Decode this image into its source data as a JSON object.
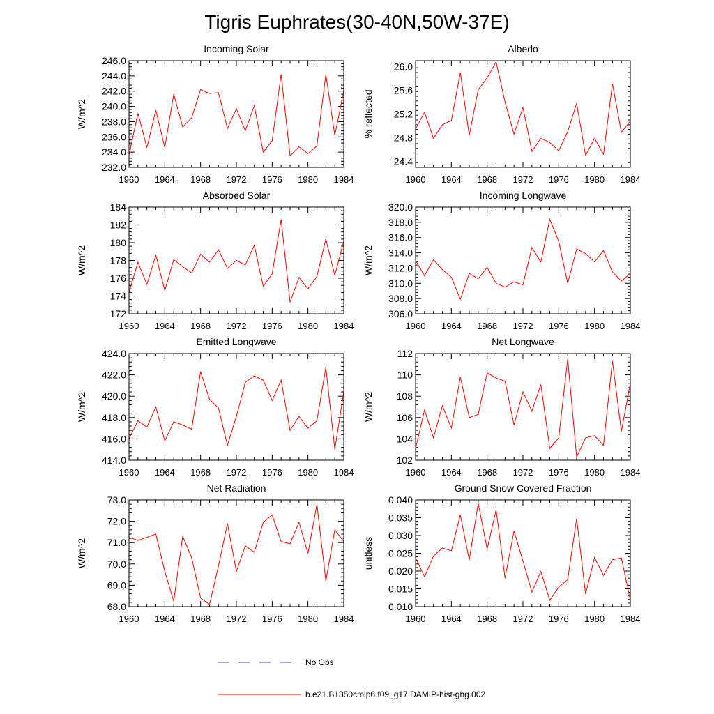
{
  "title": "Tigris Euphrates(30-40N,50W-37E)",
  "legend": [
    {
      "label": "No Obs",
      "style": "dashed",
      "color": "#4a55c8"
    },
    {
      "label": "b.e21.B1850cmip6.f09_g17.DAMIP-hist-ghg.002",
      "style": "solid",
      "color": "#ff0000"
    }
  ],
  "chart_data": [
    {
      "type": "line",
      "title": "Incoming Solar",
      "ylabel": "W/m^2",
      "xlim": [
        1960,
        1984
      ],
      "ylim": [
        232,
        246
      ],
      "xticks": [
        1960,
        1964,
        1968,
        1972,
        1976,
        1980,
        1984
      ],
      "yticks": [
        "232.0",
        "234.0",
        "236.0",
        "238.0",
        "240.0",
        "242.0",
        "244.0",
        "246.0"
      ],
      "series": [
        {
          "color": "#ff0000",
          "x": [
            1960,
            1961,
            1962,
            1963,
            1964,
            1965,
            1966,
            1967,
            1968,
            1969,
            1970,
            1971,
            1972,
            1973,
            1974,
            1975,
            1976,
            1977,
            1978,
            1979,
            1980,
            1981,
            1982,
            1983,
            1984
          ],
          "y": [
            233.6,
            239.1,
            234.6,
            239.5,
            234.6,
            241.6,
            237.3,
            238.5,
            242.2,
            241.7,
            241.8,
            237.1,
            239.7,
            236.8,
            240.1,
            234.0,
            235.5,
            244.2,
            233.5,
            234.7,
            233.8,
            234.8,
            244.2,
            236.2,
            242.0
          ]
        }
      ]
    },
    {
      "type": "line",
      "title": "Albedo",
      "ylabel": "% reflected",
      "xlim": [
        1960,
        1984
      ],
      "ylim": [
        24.3,
        26.1
      ],
      "xticks": [
        1960,
        1964,
        1968,
        1972,
        1976,
        1980,
        1984
      ],
      "yticks": [
        "24.4",
        "24.8",
        "25.2",
        "25.6",
        "26.0"
      ],
      "series": [
        {
          "color": "#ff0000",
          "x": [
            1960,
            1961,
            1962,
            1963,
            1964,
            1965,
            1966,
            1967,
            1968,
            1969,
            1970,
            1971,
            1972,
            1973,
            1974,
            1975,
            1976,
            1977,
            1978,
            1979,
            1980,
            1981,
            1982,
            1983,
            1984
          ],
          "y": [
            24.95,
            25.23,
            24.79,
            25.02,
            25.09,
            25.9,
            24.84,
            25.61,
            25.81,
            26.08,
            25.4,
            24.86,
            25.31,
            24.57,
            24.79,
            24.72,
            24.58,
            24.9,
            25.38,
            24.5,
            24.79,
            24.52,
            25.71,
            24.89,
            25.08
          ]
        }
      ]
    },
    {
      "type": "line",
      "title": "Absorbed Solar",
      "ylabel": "W/m^2",
      "xlim": [
        1960,
        1984
      ],
      "ylim": [
        172,
        184
      ],
      "xticks": [
        1960,
        1964,
        1968,
        1972,
        1976,
        1980,
        1984
      ],
      "yticks": [
        "172",
        "174",
        "176",
        "178",
        "180",
        "182",
        "184"
      ],
      "series": [
        {
          "color": "#ff0000",
          "x": [
            1960,
            1961,
            1962,
            1963,
            1964,
            1965,
            1966,
            1967,
            1968,
            1969,
            1970,
            1971,
            1972,
            1973,
            1974,
            1975,
            1976,
            1977,
            1978,
            1979,
            1980,
            1981,
            1982,
            1983,
            1984
          ],
          "y": [
            174.4,
            177.8,
            175.3,
            178.6,
            174.6,
            178.1,
            177.3,
            176.6,
            178.7,
            177.8,
            179.2,
            177.1,
            178.0,
            177.5,
            179.7,
            175.1,
            176.5,
            182.6,
            173.3,
            176.1,
            174.8,
            176.2,
            180.4,
            176.3,
            180.2
          ]
        }
      ]
    },
    {
      "type": "line",
      "title": "Incoming Longwave",
      "ylabel": "W/m^2",
      "xlim": [
        1960,
        1984
      ],
      "ylim": [
        306,
        320
      ],
      "xticks": [
        1960,
        1964,
        1968,
        1972,
        1976,
        1980,
        1984
      ],
      "yticks": [
        "306.0",
        "308.0",
        "310.0",
        "312.0",
        "314.0",
        "316.0",
        "318.0",
        "320.0"
      ],
      "series": [
        {
          "color": "#ff0000",
          "x": [
            1960,
            1961,
            1962,
            1963,
            1964,
            1965,
            1966,
            1967,
            1968,
            1969,
            1970,
            1971,
            1972,
            1973,
            1974,
            1975,
            1976,
            1977,
            1978,
            1979,
            1980,
            1981,
            1982,
            1983,
            1984
          ],
          "y": [
            313.0,
            311.0,
            313.1,
            311.8,
            310.8,
            307.9,
            311.3,
            310.6,
            312.1,
            310.0,
            309.5,
            310.2,
            309.8,
            314.7,
            312.8,
            318.4,
            315.5,
            310.0,
            314.5,
            313.9,
            312.8,
            314.3,
            311.5,
            310.3,
            311.3
          ]
        }
      ]
    },
    {
      "type": "line",
      "title": "Emitted Longwave",
      "ylabel": "W/m^2",
      "xlim": [
        1960,
        1984
      ],
      "ylim": [
        414,
        424
      ],
      "xticks": [
        1960,
        1964,
        1968,
        1972,
        1976,
        1980,
        1984
      ],
      "yticks": [
        "414.0",
        "416.0",
        "418.0",
        "420.0",
        "422.0",
        "424.0"
      ],
      "series": [
        {
          "color": "#ff0000",
          "x": [
            1960,
            1961,
            1962,
            1963,
            1964,
            1965,
            1966,
            1967,
            1968,
            1969,
            1970,
            1971,
            1972,
            1973,
            1974,
            1975,
            1976,
            1977,
            1978,
            1979,
            1980,
            1981,
            1982,
            1983,
            1984
          ],
          "y": [
            416.0,
            417.7,
            417.1,
            419.0,
            415.8,
            417.6,
            417.3,
            416.9,
            422.3,
            419.7,
            418.9,
            415.4,
            418.1,
            421.3,
            421.9,
            421.5,
            419.6,
            421.5,
            416.8,
            418.1,
            417.0,
            417.7,
            422.7,
            415.0,
            420.4
          ]
        }
      ]
    },
    {
      "type": "line",
      "title": "Net Longwave",
      "ylabel": "W/m^2",
      "xlim": [
        1960,
        1984
      ],
      "ylim": [
        102,
        112
      ],
      "xticks": [
        1960,
        1964,
        1968,
        1972,
        1976,
        1980,
        1984
      ],
      "yticks": [
        "102",
        "104",
        "106",
        "108",
        "110",
        "112"
      ],
      "series": [
        {
          "color": "#ff0000",
          "x": [
            1960,
            1961,
            1962,
            1963,
            1964,
            1965,
            1966,
            1967,
            1968,
            1969,
            1970,
            1971,
            1972,
            1973,
            1974,
            1975,
            1976,
            1977,
            1978,
            1979,
            1980,
            1981,
            1982,
            1983,
            1984
          ],
          "y": [
            103.1,
            106.7,
            104.1,
            107.1,
            105.0,
            109.8,
            106.0,
            106.3,
            110.2,
            109.7,
            109.4,
            105.3,
            108.4,
            106.6,
            109.1,
            103.1,
            104.1,
            111.5,
            102.3,
            104.1,
            104.3,
            103.4,
            111.3,
            104.7,
            109.2
          ]
        }
      ]
    },
    {
      "type": "line",
      "title": "Net Radiation",
      "ylabel": "W/m^2",
      "xlim": [
        1960,
        1984
      ],
      "ylim": [
        68,
        73
      ],
      "xticks": [
        1960,
        1964,
        1968,
        1972,
        1976,
        1980,
        1984
      ],
      "yticks": [
        "68.0",
        "69.0",
        "70.0",
        "71.0",
        "72.0",
        "73.0"
      ],
      "series": [
        {
          "color": "#ff0000",
          "x": [
            1960,
            1961,
            1962,
            1963,
            1964,
            1965,
            1966,
            1967,
            1968,
            1969,
            1970,
            1971,
            1972,
            1973,
            1974,
            1975,
            1976,
            1977,
            1978,
            1979,
            1980,
            1981,
            1982,
            1983,
            1984
          ],
          "y": [
            71.25,
            71.1,
            71.25,
            71.4,
            69.65,
            68.25,
            71.3,
            70.3,
            68.4,
            68.1,
            69.9,
            71.9,
            69.65,
            70.85,
            70.55,
            71.95,
            72.3,
            71.05,
            70.95,
            71.95,
            70.5,
            72.8,
            69.2,
            71.6,
            71.05
          ]
        }
      ]
    },
    {
      "type": "line",
      "title": "Ground Snow Covered Fraction",
      "ylabel": "unitless",
      "xlim": [
        1960,
        1984
      ],
      "ylim": [
        0.01,
        0.04
      ],
      "xticks": [
        1960,
        1964,
        1968,
        1972,
        1976,
        1980,
        1984
      ],
      "yticks": [
        "0.010",
        "0.015",
        "0.020",
        "0.025",
        "0.030",
        "0.035",
        "0.040"
      ],
      "series": [
        {
          "color": "#ff0000",
          "x": [
            1960,
            1961,
            1962,
            1963,
            1964,
            1965,
            1966,
            1967,
            1968,
            1969,
            1970,
            1971,
            1972,
            1973,
            1974,
            1975,
            1976,
            1977,
            1978,
            1979,
            1980,
            1981,
            1982,
            1983,
            1984
          ],
          "y": [
            0.0238,
            0.0184,
            0.0242,
            0.0265,
            0.0257,
            0.0358,
            0.0231,
            0.0391,
            0.0262,
            0.0372,
            0.018,
            0.0313,
            0.0228,
            0.0141,
            0.0199,
            0.0118,
            0.0155,
            0.0176,
            0.0348,
            0.0135,
            0.0238,
            0.0188,
            0.0232,
            0.0237,
            0.0118
          ]
        }
      ]
    }
  ]
}
